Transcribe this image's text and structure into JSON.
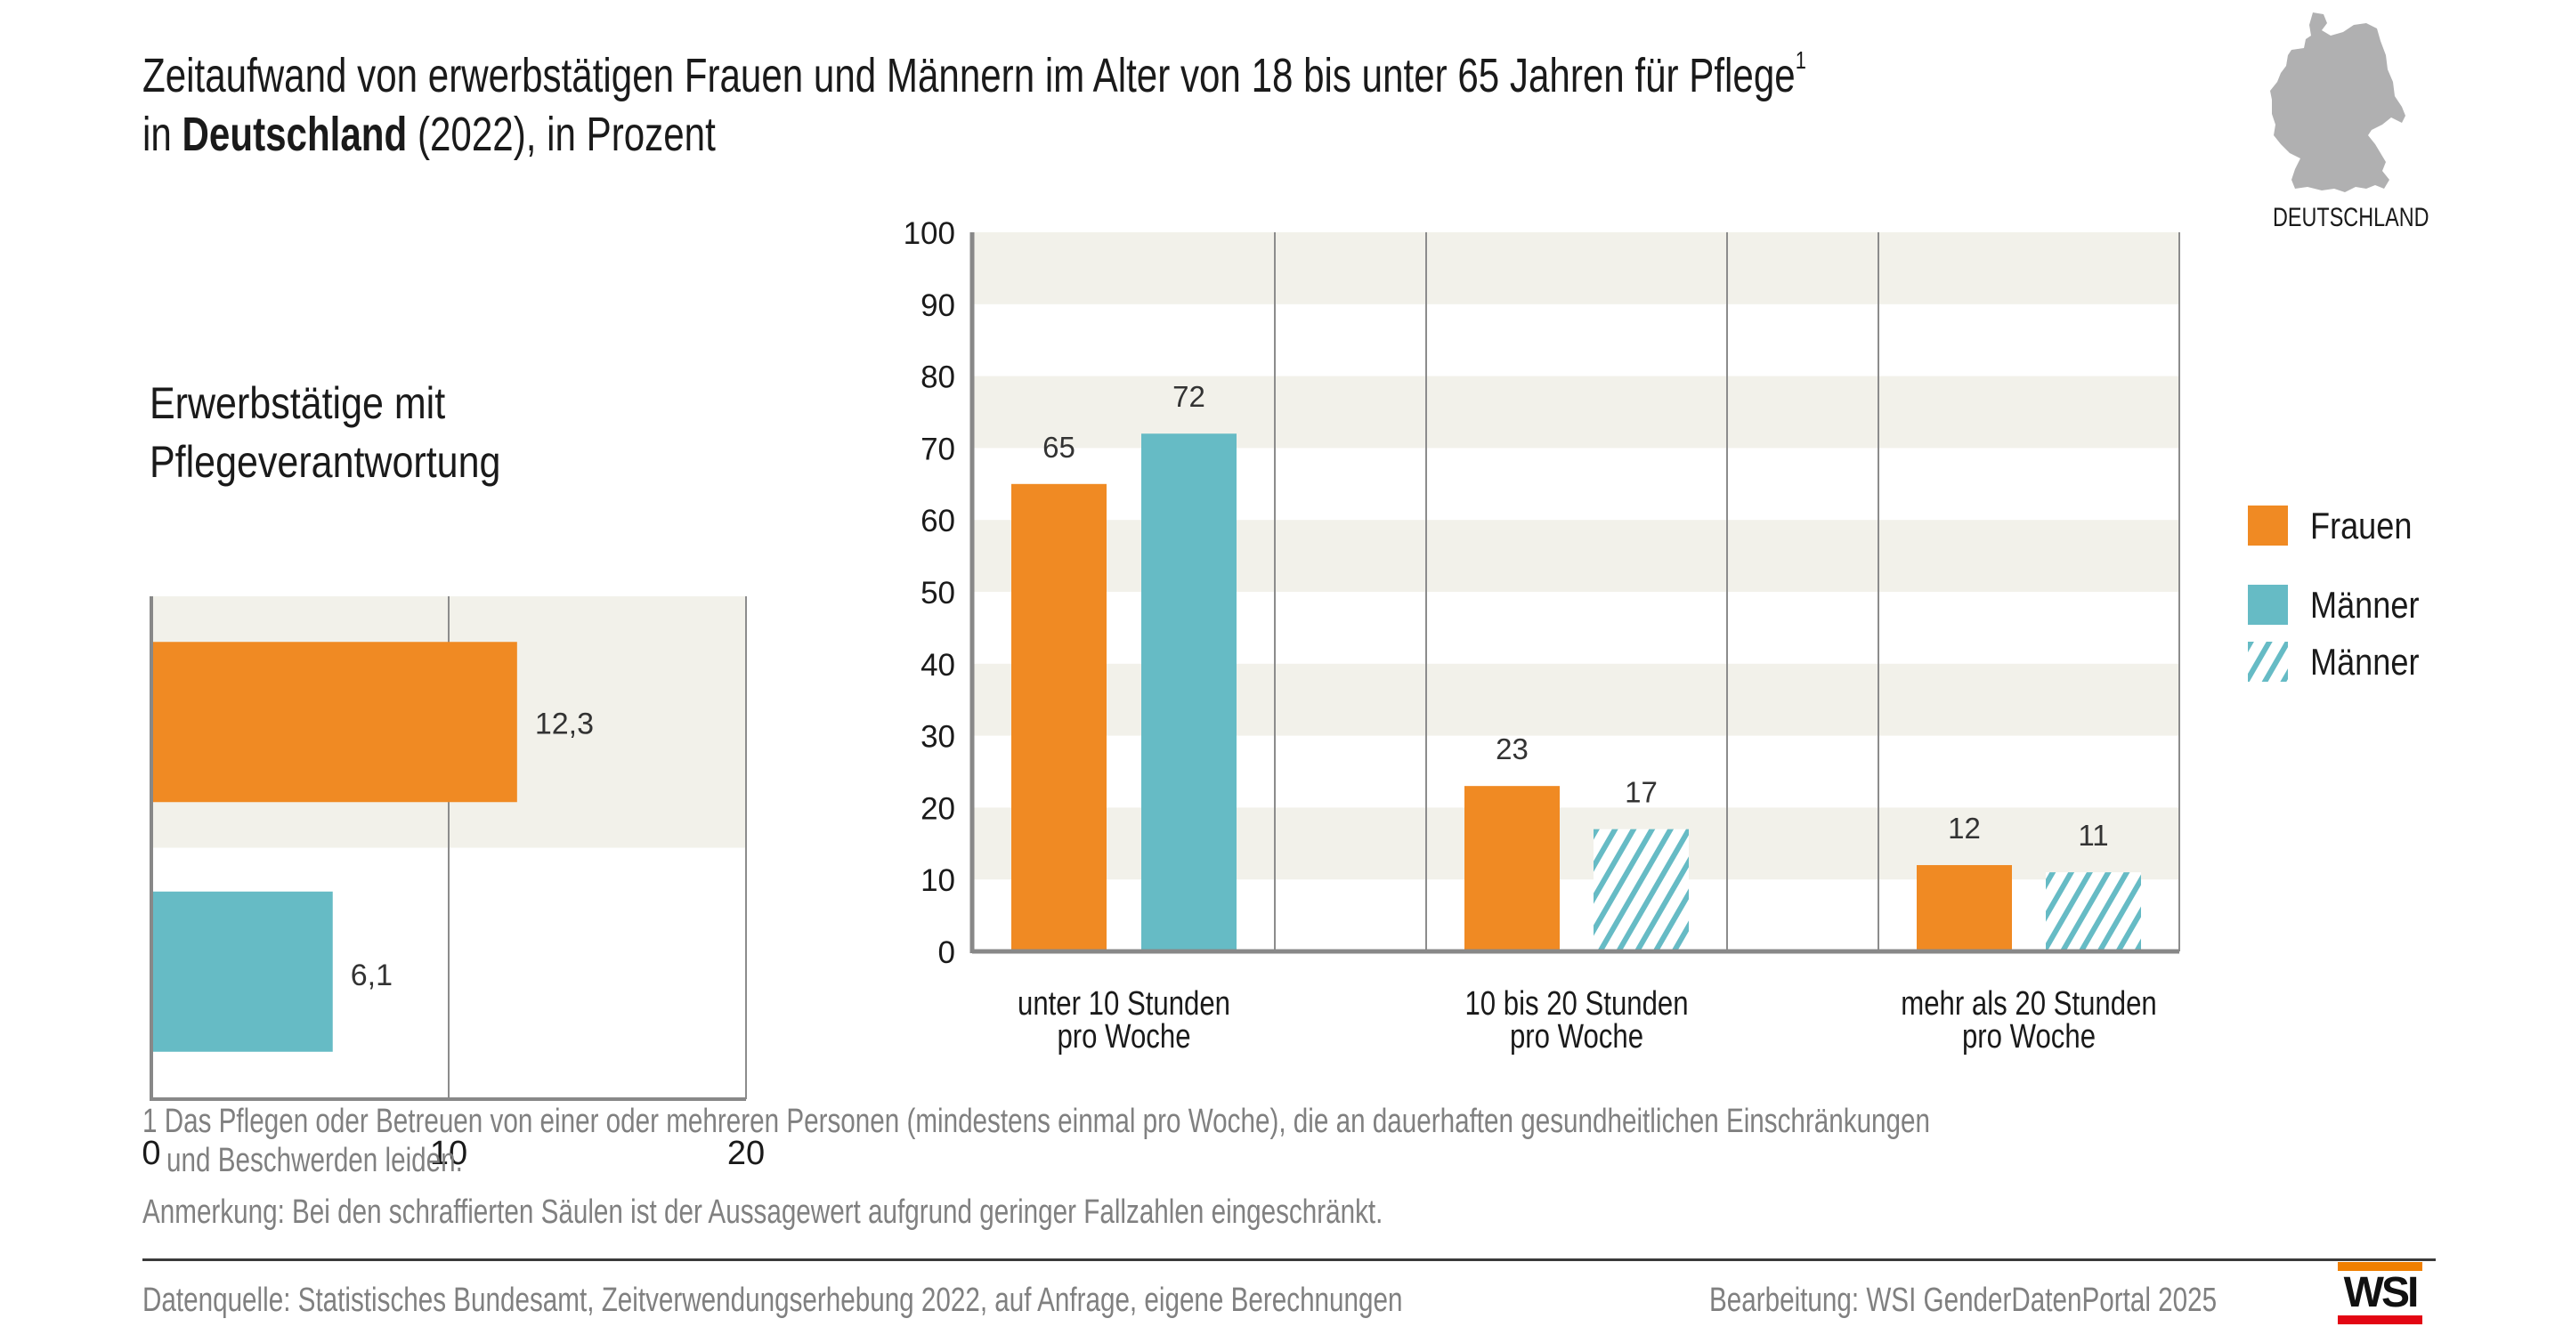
{
  "header": {
    "title_line1": "Zeitaufwand von erwerbstätigen Frauen und Männern im Alter von 18 bis unter 65 Jahren für Pflege",
    "title_footnote_ref": "1",
    "title_line2_prefix": "in ",
    "title_line2_bold": "Deutschland",
    "title_line2_suffix": " (2022), in Prozent",
    "map_icon": "germany-map-icon",
    "map_label": "DEUTSCHLAND"
  },
  "colors": {
    "frauen": "#f08a23",
    "maenner": "#66bbc5",
    "band": "#f2f1ea",
    "axis": "#888888",
    "grid": "#8c8c8c",
    "value_text": "#333333",
    "logo_top": "#f07f00",
    "logo_bottom": "#e30613"
  },
  "chart_data": [
    {
      "type": "bar",
      "orientation": "horizontal",
      "title": "Erwerbstätige mit Pflegeverantwortung",
      "title_lines": [
        "Erwerbstätige mit",
        "Pflegeverantwortung"
      ],
      "categories": [
        "Frauen",
        "Männer"
      ],
      "values": [
        12.3,
        6.1
      ],
      "value_labels": [
        "12,3",
        "6,1"
      ],
      "xlim": [
        0,
        20
      ],
      "xticks": [
        0,
        10,
        20
      ],
      "xtick_labels": [
        "0",
        "10",
        "20"
      ],
      "grid": true
    },
    {
      "type": "bar",
      "orientation": "vertical",
      "title": "",
      "xlabel": "",
      "ylabel": "",
      "categories": [
        [
          "unter 10 Stunden",
          "pro Woche"
        ],
        [
          "10 bis 20 Stunden",
          "pro Woche"
        ],
        [
          "mehr als 20 Stunden",
          "pro Woche"
        ]
      ],
      "series": [
        {
          "name": "Frauen",
          "values": [
            65,
            23,
            12
          ],
          "hatched": [
            false,
            false,
            false
          ]
        },
        {
          "name": "Männer",
          "values": [
            72,
            17,
            11
          ],
          "hatched": [
            false,
            true,
            true
          ]
        }
      ],
      "value_labels": {
        "Frauen": [
          "65",
          "23",
          "12"
        ],
        "Männer": [
          "72",
          "17",
          "11"
        ]
      },
      "ylim": [
        0,
        100
      ],
      "yticks": [
        0,
        10,
        20,
        30,
        40,
        50,
        60,
        70,
        80,
        90,
        100
      ],
      "ytick_labels": [
        "0",
        "10",
        "20",
        "30",
        "40",
        "50",
        "60",
        "70",
        "80",
        "90",
        "100"
      ],
      "grid": true,
      "legend": {
        "placement": "right",
        "entries": [
          {
            "label": "Frauen",
            "style": "solid-frauen"
          },
          {
            "label": "Männer",
            "style": "solid-maenner"
          },
          {
            "label": "Männer",
            "style": "hatched-maenner"
          }
        ]
      }
    }
  ],
  "footnotes": {
    "note1_line1": "1 Das Pflegen oder Betreuen von einer oder mehreren Personen (mindestens einmal pro Woche), die an dauerhaften gesundheitlichen Einschränkungen",
    "note1_line2": "und Beschwerden leiden.",
    "remark": "Anmerkung: Bei den schraffierten Säulen ist der Aussagewert aufgrund geringer Fallzahlen eingeschränkt."
  },
  "footer": {
    "source": "Datenquelle: Statistisches Bundesamt, Zeitverwendungserhebung 2022, auf Anfrage, eigene Berechnungen",
    "credit": "Bearbeitung: WSI GenderDatenPortal 2025",
    "logo_text": "WSI"
  }
}
